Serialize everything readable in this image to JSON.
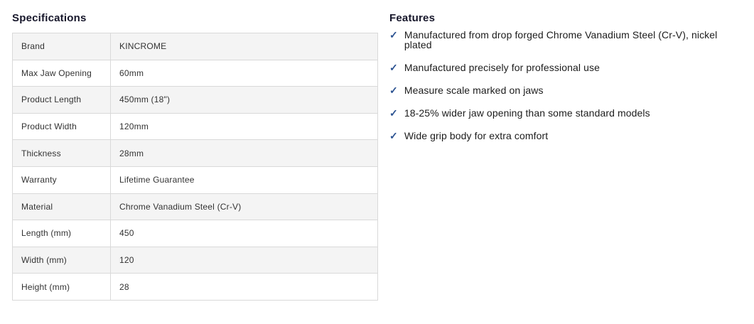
{
  "specifications": {
    "title": "Specifications",
    "rows": [
      {
        "label": "Brand",
        "value": "KINCROME"
      },
      {
        "label": "Max Jaw Opening",
        "value": "60mm"
      },
      {
        "label": "Product Length",
        "value": "450mm (18\")"
      },
      {
        "label": "Product Width",
        "value": "120mm"
      },
      {
        "label": "Thickness",
        "value": "28mm"
      },
      {
        "label": "Warranty",
        "value": "Lifetime Guarantee"
      },
      {
        "label": "Material",
        "value": "Chrome Vanadium Steel (Cr-V)"
      },
      {
        "label": "Length (mm)",
        "value": "450"
      },
      {
        "label": "Width (mm)",
        "value": "120"
      },
      {
        "label": "Height (mm)",
        "value": "28"
      }
    ]
  },
  "features": {
    "title": "Features",
    "check_icon": "✓",
    "items": [
      "Manufactured from drop forged Chrome Vanadium Steel (Cr-V), nickel plated",
      "Manufactured precisely for professional use",
      "Measure scale marked on jaws",
      "18-25% wider jaw opening than some standard models",
      "Wide grip body for extra comfort"
    ]
  },
  "colors": {
    "check": "#2b5291",
    "row_alt_bg": "#f4f4f4",
    "table_border": "#d9d9d9",
    "heading_text": "#17172b",
    "table_text": "#333333",
    "feature_text": "#1c1c1c",
    "page_bg": "#ffffff"
  }
}
